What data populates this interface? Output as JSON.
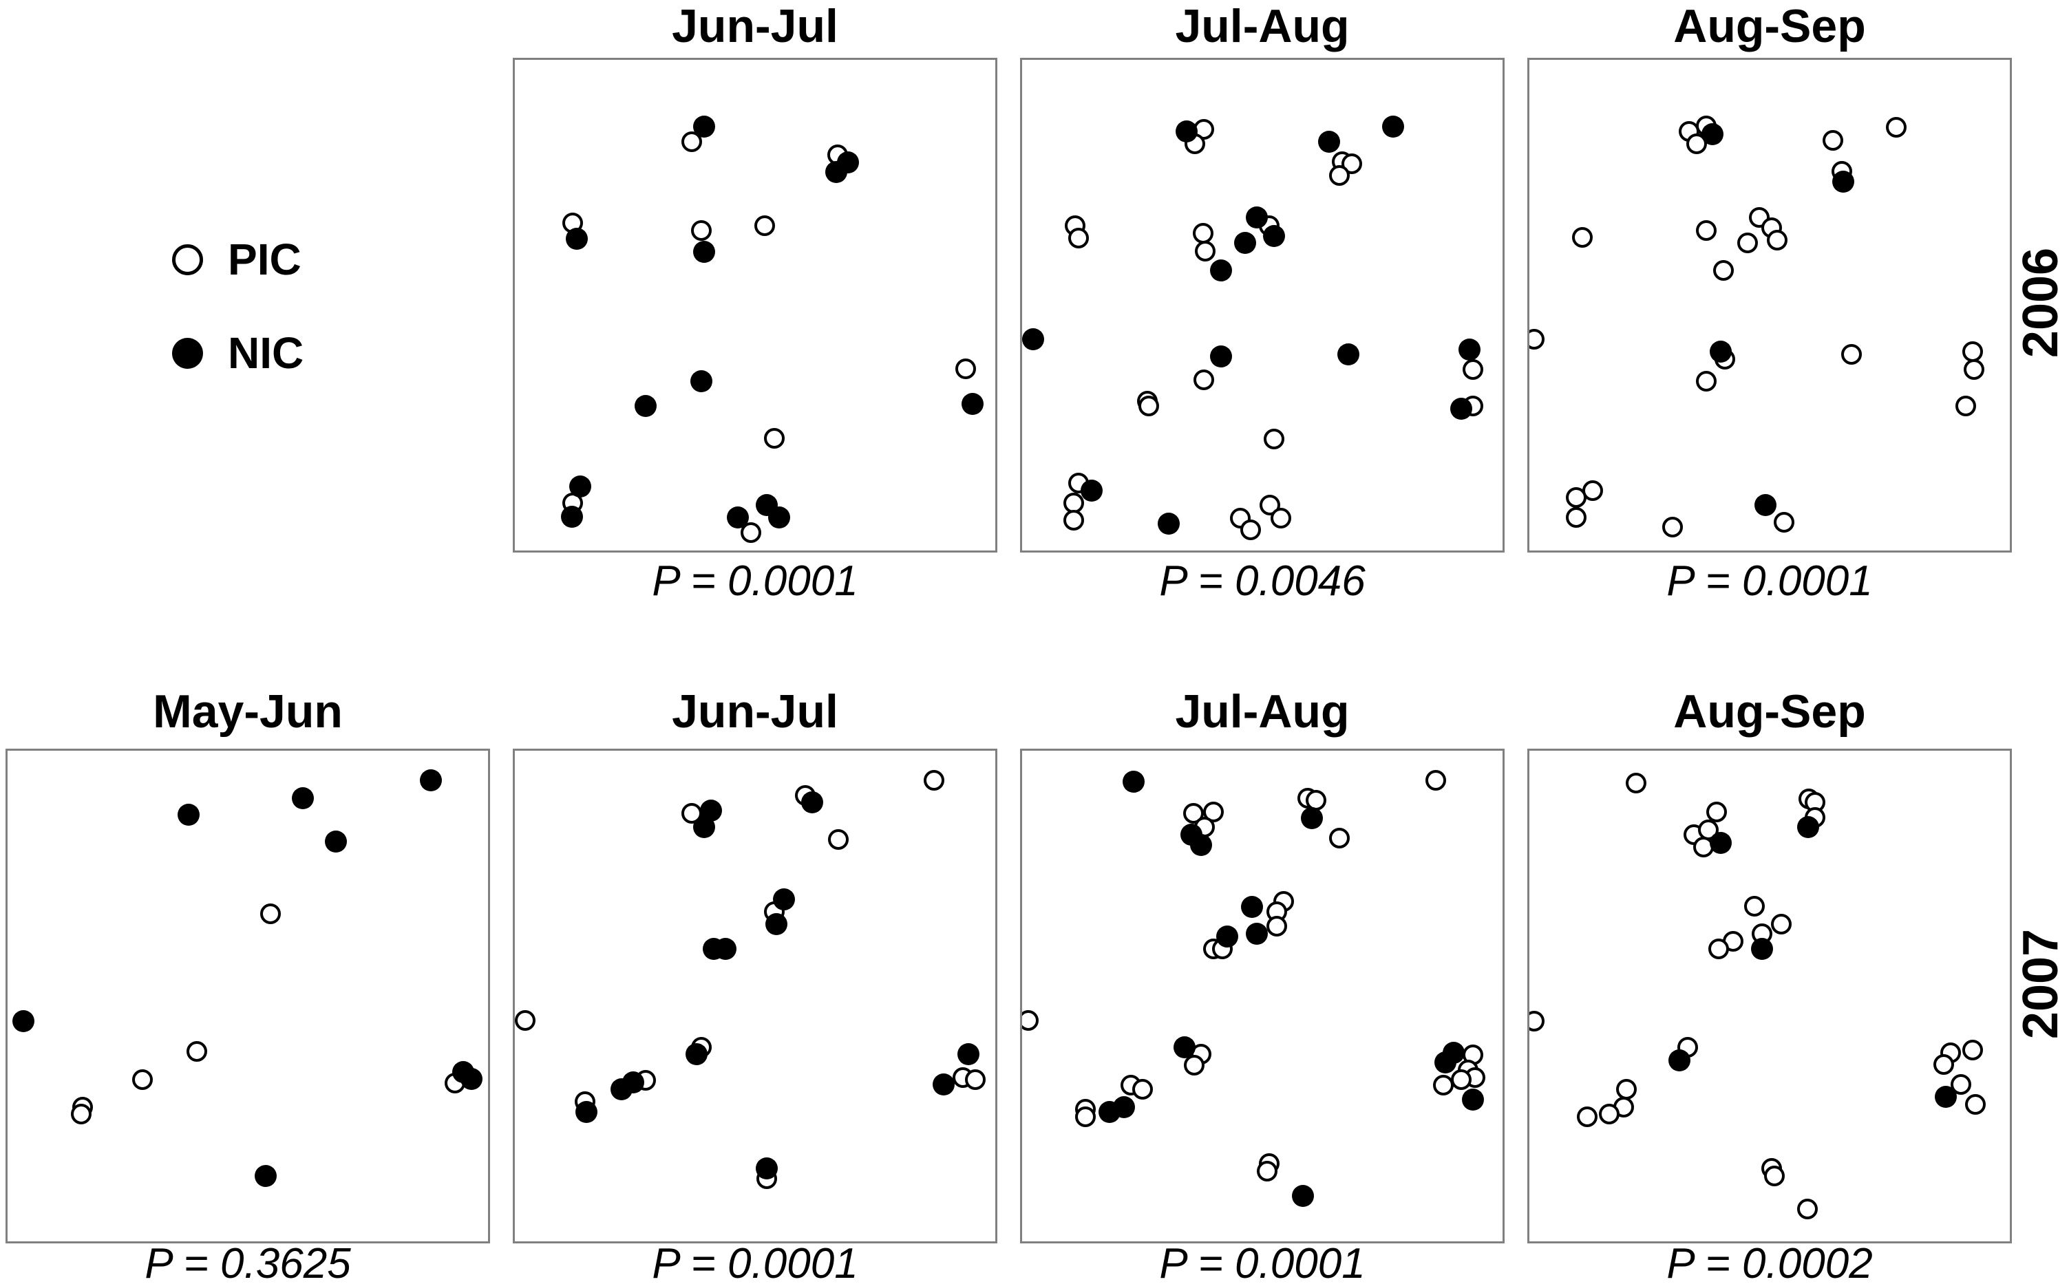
{
  "figure": {
    "background_color": "#ffffff",
    "text_color": "#000000",
    "panel_border_color": "#808080",
    "marker_open_fill": "#ffffff",
    "marker_filled_fill": "#000000"
  },
  "legend": {
    "items": [
      {
        "label": "PIC",
        "marker": "open-circle-icon"
      },
      {
        "label": "NIC",
        "marker": "filled-circle-icon"
      }
    ]
  },
  "rows": [
    {
      "year": "2006"
    },
    {
      "year": "2007"
    }
  ],
  "chart_data": {
    "type": "scatter",
    "note": "Seven unlabeled square ordination panels; point coordinates are fractions (0-1) of panel width/height, y measured from panel top. Series: PIC = open circles, NIC = filled circles.",
    "series_names": [
      "PIC",
      "NIC"
    ],
    "grid": {
      "rows": 2,
      "cols": 4
    },
    "panels": [
      {
        "year": "2006",
        "title": "Jun-Jul",
        "p_label": "P = 0.0001",
        "row": 0,
        "col": 1,
        "PIC": [
          [
            0.365,
            0.165
          ],
          [
            0.666,
            0.192
          ],
          [
            0.12,
            0.33
          ],
          [
            0.385,
            0.345
          ],
          [
            0.515,
            0.335
          ],
          [
            0.93,
            0.625
          ],
          [
            0.535,
            0.765
          ],
          [
            0.12,
            0.895
          ],
          [
            0.487,
            0.955
          ]
        ],
        "NIC": [
          [
            0.39,
            0.135
          ],
          [
            0.687,
            0.207
          ],
          [
            0.663,
            0.227
          ],
          [
            0.128,
            0.362
          ],
          [
            0.39,
            0.388
          ],
          [
            0.945,
            0.695
          ],
          [
            0.385,
            0.65
          ],
          [
            0.27,
            0.7
          ],
          [
            0.135,
            0.862
          ],
          [
            0.118,
            0.924
          ],
          [
            0.46,
            0.925
          ],
          [
            0.52,
            0.9
          ],
          [
            0.545,
            0.925
          ]
        ]
      },
      {
        "year": "2006",
        "title": "Jul-Aug",
        "p_label": "P = 0.0046",
        "row": 0,
        "col": 2,
        "PIC": [
          [
            0.375,
            0.14
          ],
          [
            0.357,
            0.17
          ],
          [
            0.661,
            0.206
          ],
          [
            0.68,
            0.21
          ],
          [
            0.655,
            0.234
          ],
          [
            0.11,
            0.335
          ],
          [
            0.117,
            0.36
          ],
          [
            0.374,
            0.35
          ],
          [
            0.378,
            0.387
          ],
          [
            0.51,
            0.335
          ],
          [
            0.375,
            0.647
          ],
          [
            0.931,
            0.626
          ],
          [
            0.258,
            0.69
          ],
          [
            0.262,
            0.7
          ],
          [
            0.93,
            0.7
          ],
          [
            0.52,
            0.766
          ],
          [
            0.116,
            0.855
          ],
          [
            0.107,
            0.896
          ],
          [
            0.107,
            0.93
          ],
          [
            0.45,
            0.926
          ],
          [
            0.472,
            0.95
          ],
          [
            0.511,
            0.9
          ],
          [
            0.534,
            0.926
          ]
        ],
        "NIC": [
          [
            0.34,
            0.145
          ],
          [
            0.633,
            0.165
          ],
          [
            0.765,
            0.135
          ],
          [
            0.485,
            0.318
          ],
          [
            0.52,
            0.356
          ],
          [
            0.46,
            0.37
          ],
          [
            0.41,
            0.426
          ],
          [
            0.023,
            0.564
          ],
          [
            0.41,
            0.6
          ],
          [
            0.673,
            0.595
          ],
          [
            0.924,
            0.585
          ],
          [
            0.906,
            0.705
          ],
          [
            0.144,
            0.87
          ],
          [
            0.303,
            0.937
          ]
        ]
      },
      {
        "year": "2006",
        "title": "Aug-Sep",
        "p_label": "P = 0.0001",
        "row": 0,
        "col": 3,
        "PIC": [
          [
            0.33,
            0.144
          ],
          [
            0.365,
            0.133
          ],
          [
            0.345,
            0.17
          ],
          [
            0.626,
            0.163
          ],
          [
            0.757,
            0.136
          ],
          [
            0.645,
            0.225
          ],
          [
            0.109,
            0.359
          ],
          [
            0.365,
            0.345
          ],
          [
            0.475,
            0.318
          ],
          [
            0.5,
            0.34
          ],
          [
            0.45,
            0.37
          ],
          [
            0.512,
            0.365
          ],
          [
            0.4,
            0.425
          ],
          [
            0.01,
            0.564
          ],
          [
            0.404,
            0.605
          ],
          [
            0.365,
            0.65
          ],
          [
            0.665,
            0.595
          ],
          [
            0.915,
            0.59
          ],
          [
            0.917,
            0.626
          ],
          [
            0.9,
            0.7
          ],
          [
            0.13,
            0.87
          ],
          [
            0.096,
            0.885
          ],
          [
            0.097,
            0.925
          ],
          [
            0.296,
            0.944
          ],
          [
            0.525,
            0.935
          ]
        ],
        "NIC": [
          [
            0.378,
            0.15
          ],
          [
            0.648,
            0.246
          ],
          [
            0.395,
            0.59
          ],
          [
            0.487,
            0.9
          ]
        ]
      },
      {
        "year": "2007",
        "title": "May-Jun",
        "p_label": "P = 0.3625",
        "row": 1,
        "col": 0,
        "PIC": [
          [
            0.543,
            0.33
          ],
          [
            0.391,
            0.608
          ],
          [
            0.279,
            0.665
          ],
          [
            0.155,
            0.72
          ],
          [
            0.152,
            0.735
          ],
          [
            0.923,
            0.672
          ]
        ],
        "NIC": [
          [
            0.374,
            0.13
          ],
          [
            0.61,
            0.096
          ],
          [
            0.874,
            0.06
          ],
          [
            0.678,
            0.184
          ],
          [
            0.032,
            0.547
          ],
          [
            0.94,
            0.649
          ],
          [
            0.957,
            0.663
          ],
          [
            0.532,
            0.86
          ]
        ]
      },
      {
        "year": "2007",
        "title": "Jun-Jul",
        "p_label": "P = 0.0001",
        "row": 1,
        "col": 1,
        "PIC": [
          [
            0.865,
            0.06
          ],
          [
            0.6,
            0.09
          ],
          [
            0.365,
            0.126
          ],
          [
            0.667,
            0.18
          ],
          [
            0.535,
            0.325
          ],
          [
            0.022,
            0.545
          ],
          [
            0.385,
            0.6
          ],
          [
            0.27,
            0.666
          ],
          [
            0.145,
            0.71
          ],
          [
            0.925,
            0.66
          ],
          [
            0.95,
            0.665
          ],
          [
            0.52,
            0.865
          ]
        ],
        "NIC": [
          [
            0.614,
            0.105
          ],
          [
            0.405,
            0.121
          ],
          [
            0.39,
            0.155
          ],
          [
            0.555,
            0.3
          ],
          [
            0.54,
            0.35
          ],
          [
            0.41,
            0.4
          ],
          [
            0.435,
            0.4
          ],
          [
            0.375,
            0.614
          ],
          [
            0.245,
            0.67
          ],
          [
            0.22,
            0.684
          ],
          [
            0.148,
            0.73
          ],
          [
            0.936,
            0.614
          ],
          [
            0.885,
            0.675
          ],
          [
            0.52,
            0.844
          ]
        ]
      },
      {
        "year": "2007",
        "title": "Jul-Aug",
        "p_label": "P = 0.0001",
        "row": 1,
        "col": 2,
        "PIC": [
          [
            0.854,
            0.06
          ],
          [
            0.589,
            0.096
          ],
          [
            0.607,
            0.1
          ],
          [
            0.354,
            0.126
          ],
          [
            0.395,
            0.124
          ],
          [
            0.376,
            0.155
          ],
          [
            0.655,
            0.176
          ],
          [
            0.54,
            0.305
          ],
          [
            0.525,
            0.325
          ],
          [
            0.525,
            0.354
          ],
          [
            0.395,
            0.4
          ],
          [
            0.414,
            0.401
          ],
          [
            0.013,
            0.545
          ],
          [
            0.37,
            0.614
          ],
          [
            0.355,
            0.635
          ],
          [
            0.225,
            0.676
          ],
          [
            0.249,
            0.684
          ],
          [
            0.13,
            0.724
          ],
          [
            0.131,
            0.74
          ],
          [
            0.93,
            0.615
          ],
          [
            0.92,
            0.645
          ],
          [
            0.935,
            0.66
          ],
          [
            0.87,
            0.676
          ],
          [
            0.906,
            0.665
          ],
          [
            0.51,
            0.834
          ],
          [
            0.506,
            0.85
          ]
        ],
        "NIC": [
          [
            0.23,
            0.063
          ],
          [
            0.598,
            0.136
          ],
          [
            0.35,
            0.17
          ],
          [
            0.37,
            0.19
          ],
          [
            0.475,
            0.316
          ],
          [
            0.424,
            0.375
          ],
          [
            0.484,
            0.37
          ],
          [
            0.335,
            0.6
          ],
          [
            0.18,
            0.73
          ],
          [
            0.21,
            0.72
          ],
          [
            0.89,
            0.61
          ],
          [
            0.874,
            0.63
          ],
          [
            0.93,
            0.705
          ],
          [
            0.58,
            0.9
          ]
        ]
      },
      {
        "year": "2007",
        "title": "Aug-Sep",
        "p_label": "P = 0.0002",
        "row": 1,
        "col": 3,
        "PIC": [
          [
            0.22,
            0.065
          ],
          [
            0.387,
            0.124
          ],
          [
            0.576,
            0.098
          ],
          [
            0.59,
            0.105
          ],
          [
            0.34,
            0.17
          ],
          [
            0.37,
            0.16
          ],
          [
            0.59,
            0.135
          ],
          [
            0.36,
            0.195
          ],
          [
            0.464,
            0.315
          ],
          [
            0.52,
            0.35
          ],
          [
            0.48,
            0.37
          ],
          [
            0.42,
            0.385
          ],
          [
            0.39,
            0.4
          ],
          [
            0.01,
            0.546
          ],
          [
            0.327,
            0.6
          ],
          [
            0.2,
            0.684
          ],
          [
            0.194,
            0.72
          ],
          [
            0.165,
            0.734
          ],
          [
            0.12,
            0.74
          ],
          [
            0.87,
            0.61
          ],
          [
            0.855,
            0.634
          ],
          [
            0.915,
            0.605
          ],
          [
            0.89,
            0.674
          ],
          [
            0.92,
            0.715
          ],
          [
            0.5,
            0.844
          ],
          [
            0.506,
            0.86
          ],
          [
            0.574,
            0.926
          ]
        ],
        "NIC": [
          [
            0.575,
            0.155
          ],
          [
            0.395,
            0.186
          ],
          [
            0.48,
            0.4
          ],
          [
            0.31,
            0.626
          ],
          [
            0.86,
            0.7
          ]
        ]
      }
    ]
  }
}
